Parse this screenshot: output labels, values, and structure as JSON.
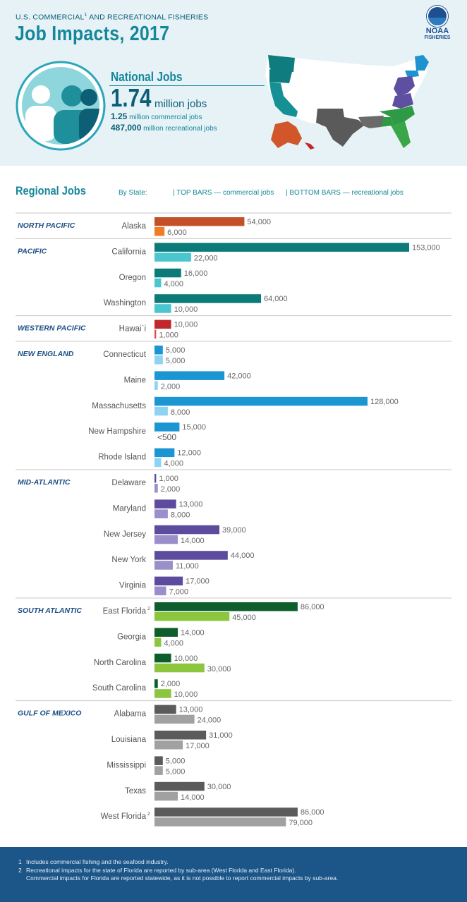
{
  "header": {
    "subtitle": "U.S. COMMERCIAL",
    "subtitle_sup": "1",
    "subtitle_rest": " AND RECREATIONAL FISHERIES",
    "title": "Job Impacts, 2017",
    "logo_word": "NOAA",
    "logo_sub": "FISHERIES"
  },
  "national": {
    "label": "National Jobs",
    "total": "1.74",
    "total_unit": "million jobs",
    "commercial_value": "1.25",
    "commercial_text": " million commercial jobs",
    "recreational_value": "487,000",
    "recreational_text": " million recreational jobs"
  },
  "chart_data": {
    "type": "bar",
    "title": "Regional Jobs",
    "legend": {
      "by_state": "By State:",
      "top": "| TOP BARS — commercial jobs",
      "bottom": "| BOTTOM BARS — recreational jobs"
    },
    "series": [
      {
        "name": "commercial jobs"
      },
      {
        "name": "recreational jobs"
      }
    ],
    "regions": [
      {
        "name": "NORTH PACIFIC",
        "color_top": "#c4502a",
        "color_bottom": "#ef7d27",
        "states": [
          {
            "name": "Alaska",
            "commercial": 54000,
            "recreational": 6000,
            "commercial_label": "54,000",
            "recreational_label": "6,000"
          }
        ]
      },
      {
        "name": "PACIFIC",
        "color_top": "#0d7a7a",
        "color_bottom": "#4bc6cf",
        "states": [
          {
            "name": "California",
            "commercial": 153000,
            "recreational": 22000,
            "commercial_label": "153,000",
            "recreational_label": "22,000"
          },
          {
            "name": "Oregon",
            "commercial": 16000,
            "recreational": 4000,
            "commercial_label": "16,000",
            "recreational_label": "4,000"
          },
          {
            "name": "Washington",
            "commercial": 64000,
            "recreational": 10000,
            "commercial_label": "64,000",
            "recreational_label": "10,000"
          }
        ]
      },
      {
        "name": "WESTERN PACIFIC",
        "color_top": "#c0282d",
        "color_bottom": "#e8474c",
        "states": [
          {
            "name": "Hawai`i",
            "commercial": 10000,
            "recreational": 1000,
            "commercial_label": "10,000",
            "recreational_label": "1,000"
          }
        ]
      },
      {
        "name": "NEW ENGLAND",
        "color_top": "#1b96d3",
        "color_bottom": "#8fd3f2",
        "states": [
          {
            "name": "Connecticut",
            "commercial": 5000,
            "recreational": 5000,
            "commercial_label": "5,000",
            "recreational_label": "5,000"
          },
          {
            "name": "Maine",
            "commercial": 42000,
            "recreational": 2000,
            "commercial_label": "42,000",
            "recreational_label": "2,000"
          },
          {
            "name": "Massachusetts",
            "commercial": 128000,
            "recreational": 8000,
            "commercial_label": "128,000",
            "recreational_label": "8,000"
          },
          {
            "name": "New Hampshire",
            "commercial": 15000,
            "recreational": 0,
            "commercial_label": "15,000",
            "recreational_label": "<500"
          },
          {
            "name": "Rhode Island",
            "commercial": 12000,
            "recreational": 4000,
            "commercial_label": "12,000",
            "recreational_label": "4,000"
          }
        ]
      },
      {
        "name": "MID-ATLANTIC",
        "color_top": "#5d4c9e",
        "color_bottom": "#9a8fcb",
        "states": [
          {
            "name": "Delaware",
            "commercial": 1000,
            "recreational": 2000,
            "commercial_label": "1,000",
            "recreational_label": "2,000"
          },
          {
            "name": "Maryland",
            "commercial": 13000,
            "recreational": 8000,
            "commercial_label": "13,000",
            "recreational_label": "8,000"
          },
          {
            "name": "New Jersey",
            "commercial": 39000,
            "recreational": 14000,
            "commercial_label": "39,000",
            "recreational_label": "14,000"
          },
          {
            "name": "New York",
            "commercial": 44000,
            "recreational": 11000,
            "commercial_label": "44,000",
            "recreational_label": "11,000"
          },
          {
            "name": "Virginia",
            "commercial": 17000,
            "recreational": 7000,
            "commercial_label": "17,000",
            "recreational_label": "7,000"
          }
        ]
      },
      {
        "name": "SOUTH ATLANTIC",
        "color_top": "#0e5e2d",
        "color_bottom": "#8cc63f",
        "states": [
          {
            "name": "East Florida",
            "sup": "2",
            "commercial": 86000,
            "recreational": 45000,
            "commercial_label": "86,000",
            "recreational_label": "45,000"
          },
          {
            "name": "Georgia",
            "commercial": 14000,
            "recreational": 4000,
            "commercial_label": "14,000",
            "recreational_label": "4,000"
          },
          {
            "name": "North Carolina",
            "commercial": 10000,
            "recreational": 30000,
            "commercial_label": "10,000",
            "recreational_label": "30,000"
          },
          {
            "name": "South Carolina",
            "commercial": 2000,
            "recreational": 10000,
            "commercial_label": "2,000",
            "recreational_label": "10,000"
          }
        ]
      },
      {
        "name": "GULF OF MEXICO",
        "color_top": "#5b5b5b",
        "color_bottom": "#a1a1a1",
        "states": [
          {
            "name": "Alabama",
            "commercial": 13000,
            "recreational": 24000,
            "commercial_label": "13,000",
            "recreational_label": "24,000"
          },
          {
            "name": "Louisiana",
            "commercial": 31000,
            "recreational": 17000,
            "commercial_label": "31,000",
            "recreational_label": "17,000"
          },
          {
            "name": "Mississippi",
            "commercial": 5000,
            "recreational": 5000,
            "commercial_label": "5,000",
            "recreational_label": "5,000"
          },
          {
            "name": "Texas",
            "commercial": 30000,
            "recreational": 14000,
            "commercial_label": "30,000",
            "recreational_label": "14,000"
          },
          {
            "name": "West Florida",
            "sup": "2",
            "commercial": 86000,
            "recreational": 79000,
            "commercial_label": "86,000",
            "recreational_label": "79,000"
          }
        ]
      }
    ]
  },
  "footnotes": [
    {
      "num": "1",
      "text": "Includes commercial fishing and the seafood industry."
    },
    {
      "num": "2",
      "text": "Recreational impacts for the state of Florida are reported by sub-area (West Florida and East Florida)."
    },
    {
      "num": "",
      "text": "Commercial impacts for Florida are reported statewide, as it is not possible to report commercial impacts by sub-area."
    }
  ]
}
